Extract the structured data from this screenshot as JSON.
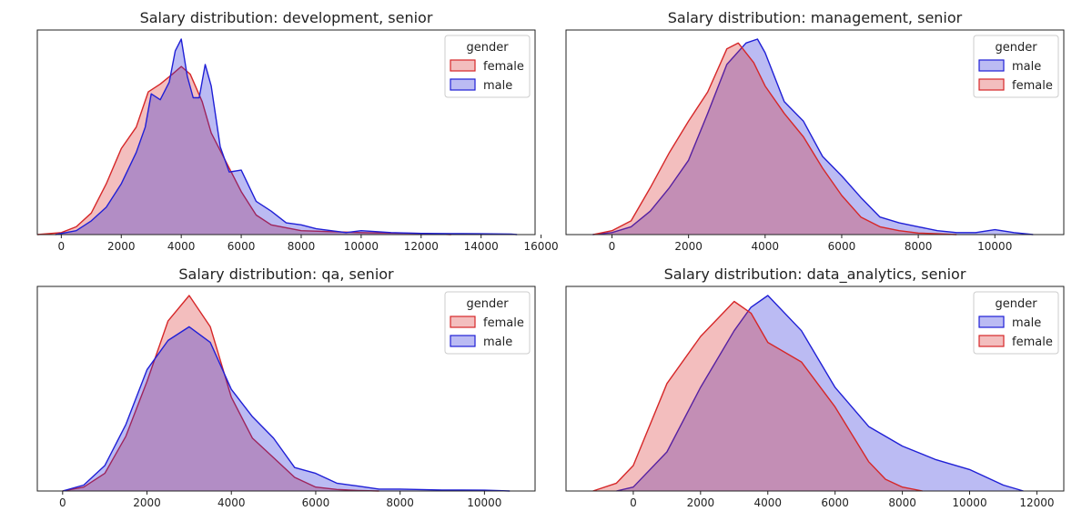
{
  "colors": {
    "female": "#d62728",
    "male": "#1f1fd6"
  },
  "chart_data": [
    {
      "type": "area",
      "title": "Salary distribution: development, senior",
      "xlim": [
        -800,
        15800
      ],
      "xticks": [
        0,
        2000,
        4000,
        6000,
        8000,
        10000,
        12000,
        14000,
        16000
      ],
      "ylim": [
        0,
        1.0
      ],
      "legend": {
        "title": "gender",
        "position": "top-right"
      },
      "series": [
        {
          "name": "female",
          "color": "#d62728",
          "x": [
            -800,
            0,
            500,
            1000,
            1500,
            2000,
            2500,
            2900,
            3300,
            3700,
            4000,
            4300,
            4700,
            5000,
            5500,
            6000,
            6500,
            7000,
            8000,
            9000,
            10000,
            11000,
            12000,
            13000
          ],
          "y": [
            0,
            0.01,
            0.04,
            0.11,
            0.26,
            0.44,
            0.55,
            0.73,
            0.77,
            0.82,
            0.86,
            0.82,
            0.68,
            0.52,
            0.37,
            0.22,
            0.1,
            0.05,
            0.02,
            0.015,
            0.01,
            0.008,
            0.006,
            0
          ]
        },
        {
          "name": "male",
          "color": "#1f1fd6",
          "x": [
            -200,
            500,
            1000,
            1500,
            2000,
            2500,
            2800,
            3000,
            3300,
            3600,
            3800,
            4000,
            4200,
            4400,
            4600,
            4800,
            5000,
            5300,
            5600,
            6000,
            6500,
            7000,
            7500,
            8000,
            8500,
            9000,
            9500,
            10000,
            11000,
            12000,
            13000,
            14000,
            15000,
            15200
          ],
          "y": [
            0,
            0.02,
            0.07,
            0.14,
            0.26,
            0.42,
            0.55,
            0.72,
            0.69,
            0.78,
            0.94,
            1.0,
            0.81,
            0.7,
            0.7,
            0.87,
            0.76,
            0.45,
            0.32,
            0.33,
            0.17,
            0.12,
            0.06,
            0.05,
            0.03,
            0.02,
            0.01,
            0.02,
            0.01,
            0.006,
            0.005,
            0.004,
            0.003,
            0
          ]
        }
      ]
    },
    {
      "type": "area",
      "title": "Salary distribution: management, senior",
      "xlim": [
        -1200,
        11800
      ],
      "xticks": [
        0,
        2000,
        4000,
        6000,
        8000,
        10000
      ],
      "ylim": [
        0,
        1.0
      ],
      "legend": {
        "title": "gender",
        "position": "top-right"
      },
      "series": [
        {
          "name": "male",
          "color": "#1f1fd6",
          "x": [
            -500,
            0,
            500,
            1000,
            1500,
            2000,
            2500,
            3000,
            3500,
            3800,
            4000,
            4500,
            5000,
            5500,
            6000,
            6500,
            7000,
            7500,
            8000,
            8500,
            9000,
            9500,
            10000,
            10500,
            11000
          ],
          "y": [
            0,
            0.01,
            0.04,
            0.12,
            0.24,
            0.38,
            0.62,
            0.87,
            0.98,
            1.0,
            0.93,
            0.68,
            0.58,
            0.4,
            0.3,
            0.19,
            0.09,
            0.06,
            0.04,
            0.02,
            0.01,
            0.01,
            0.025,
            0.01,
            0
          ]
        },
        {
          "name": "female",
          "color": "#d62728",
          "x": [
            -500,
            0,
            500,
            1000,
            1500,
            2000,
            2500,
            3000,
            3300,
            3700,
            4000,
            4500,
            5000,
            5500,
            6000,
            6500,
            7000,
            7500,
            8000,
            8500,
            9000
          ],
          "y": [
            0,
            0.02,
            0.07,
            0.24,
            0.42,
            0.58,
            0.73,
            0.95,
            0.98,
            0.88,
            0.76,
            0.62,
            0.5,
            0.34,
            0.2,
            0.09,
            0.04,
            0.02,
            0.008,
            0.004,
            0
          ]
        }
      ]
    },
    {
      "type": "area",
      "title": "Salary distribution: qa, senior",
      "xlim": [
        -600,
        11200
      ],
      "xticks": [
        0,
        2000,
        4000,
        6000,
        8000,
        10000
      ],
      "ylim": [
        0,
        1.0
      ],
      "legend": {
        "title": "gender",
        "position": "top-right"
      },
      "series": [
        {
          "name": "female",
          "color": "#d62728",
          "x": [
            0,
            500,
            1000,
            1500,
            2000,
            2500,
            3000,
            3500,
            4000,
            4500,
            5000,
            5500,
            6000,
            6500,
            7000,
            7500
          ],
          "y": [
            0,
            0.02,
            0.09,
            0.28,
            0.56,
            0.87,
            1.0,
            0.84,
            0.48,
            0.27,
            0.17,
            0.07,
            0.02,
            0.008,
            0.003,
            0
          ]
        },
        {
          "name": "male",
          "color": "#1f1fd6",
          "x": [
            0,
            500,
            1000,
            1500,
            2000,
            2500,
            3000,
            3500,
            4000,
            4500,
            5000,
            5500,
            6000,
            6500,
            7000,
            7500,
            8000,
            9000,
            10000,
            10600
          ],
          "y": [
            0,
            0.03,
            0.13,
            0.34,
            0.62,
            0.77,
            0.84,
            0.76,
            0.52,
            0.38,
            0.27,
            0.12,
            0.09,
            0.04,
            0.025,
            0.01,
            0.01,
            0.005,
            0.004,
            0
          ]
        }
      ]
    },
    {
      "type": "area",
      "title": "Salary distribution: data_analytics, senior",
      "xlim": [
        -2000,
        12800
      ],
      "xticks": [
        0,
        2000,
        4000,
        6000,
        8000,
        10000,
        12000
      ],
      "ylim": [
        0,
        1.0
      ],
      "legend": {
        "title": "gender",
        "position": "top-right"
      },
      "series": [
        {
          "name": "male",
          "color": "#1f1fd6",
          "x": [
            -500,
            0,
            1000,
            2000,
            3000,
            3500,
            4000,
            5000,
            6000,
            7000,
            8000,
            9000,
            10000,
            11000,
            11600
          ],
          "y": [
            0,
            0.02,
            0.2,
            0.53,
            0.82,
            0.94,
            1.0,
            0.82,
            0.53,
            0.33,
            0.23,
            0.16,
            0.11,
            0.03,
            0
          ]
        },
        {
          "name": "female",
          "color": "#d62728",
          "x": [
            -1200,
            -500,
            0,
            1000,
            2000,
            3000,
            3500,
            4000,
            5000,
            6000,
            7000,
            7500,
            8000,
            8600
          ],
          "y": [
            0,
            0.04,
            0.13,
            0.55,
            0.79,
            0.97,
            0.91,
            0.76,
            0.66,
            0.43,
            0.15,
            0.06,
            0.02,
            0
          ]
        }
      ]
    }
  ]
}
